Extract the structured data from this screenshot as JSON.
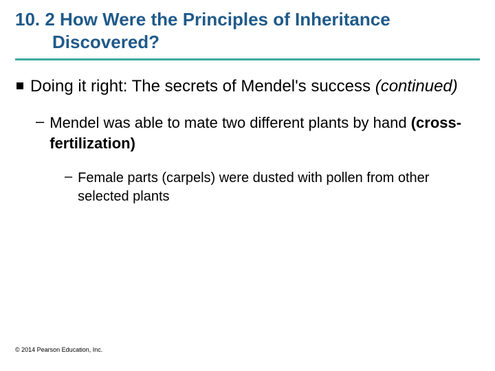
{
  "title": {
    "line1": "10. 2 How Were the Principles of Inheritance",
    "line2": "Discovered?",
    "color": "#1f5a8a",
    "underline_color": "#3ea99f",
    "fontsize": 26
  },
  "body": {
    "color": "#000000",
    "lvl1": {
      "text_plain": "Doing it right: The secrets of Mendel's success",
      "text_italic": "(continued)",
      "fontsize": 24
    },
    "lvl2": {
      "dash": "–",
      "text_before": "Mendel was able to mate two different plants by hand ",
      "text_bold_open": "(cross-fertilization",
      "text_bold_close": ")",
      "fontsize": 22
    },
    "lvl3": {
      "dash": "–",
      "text": "Female parts (carpels) were dusted with pollen from other selected plants",
      "fontsize": 20
    }
  },
  "copyright": {
    "text": "© 2014 Pearson Education, Inc.",
    "fontsize": 9,
    "color": "#000000"
  }
}
